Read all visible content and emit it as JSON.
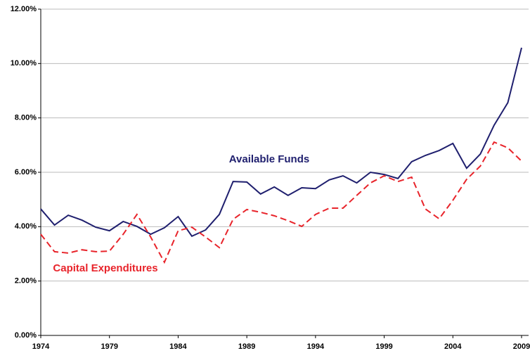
{
  "chart_data": {
    "type": "line",
    "x": [
      1974,
      1975,
      1976,
      1977,
      1978,
      1979,
      1980,
      1981,
      1982,
      1983,
      1984,
      1985,
      1986,
      1987,
      1988,
      1989,
      1990,
      1991,
      1992,
      1993,
      1994,
      1995,
      1996,
      1997,
      1998,
      1999,
      2000,
      2001,
      2002,
      2003,
      2004,
      2005,
      2006,
      2007,
      2008,
      2009
    ],
    "series": [
      {
        "name": "Available Funds",
        "color": "#1f1f6e",
        "line_style": "solid",
        "values": [
          4.65,
          4.06,
          4.42,
          4.24,
          3.98,
          3.85,
          4.19,
          4.01,
          3.72,
          3.96,
          4.37,
          3.65,
          3.88,
          4.45,
          5.66,
          5.64,
          5.2,
          5.46,
          5.15,
          5.43,
          5.4,
          5.72,
          5.87,
          5.61,
          6.0,
          5.92,
          5.77,
          6.39,
          6.62,
          6.8,
          7.06,
          6.15,
          6.67,
          7.73,
          8.56,
          10.58
        ]
      },
      {
        "name": "Capital Expenditures",
        "color": "#e8242b",
        "line_style": "dashed",
        "values": [
          3.72,
          3.08,
          3.03,
          3.15,
          3.08,
          3.1,
          3.72,
          4.45,
          3.62,
          2.69,
          3.85,
          3.98,
          3.62,
          3.23,
          4.27,
          4.63,
          4.53,
          4.4,
          4.22,
          4.01,
          4.45,
          4.68,
          4.68,
          5.15,
          5.61,
          5.87,
          5.66,
          5.82,
          4.65,
          4.29,
          4.97,
          5.74,
          6.23,
          7.11,
          6.9,
          6.41
        ]
      }
    ],
    "xlim": [
      1974,
      2009
    ],
    "xticks": [
      1974,
      1979,
      1984,
      1989,
      1994,
      1999,
      2004,
      2009
    ],
    "ylim": [
      0,
      12
    ],
    "yticks": [
      {
        "value": 0,
        "label": "0.00%"
      },
      {
        "value": 2,
        "label": "2.00%"
      },
      {
        "value": 4,
        "label": "4.00%"
      },
      {
        "value": 6,
        "label": "6.00%"
      },
      {
        "value": 8,
        "label": "8.00%"
      },
      {
        "value": 10,
        "label": "10.00%"
      },
      {
        "value": 12,
        "label": "12.00%"
      }
    ],
    "grid": true
  }
}
